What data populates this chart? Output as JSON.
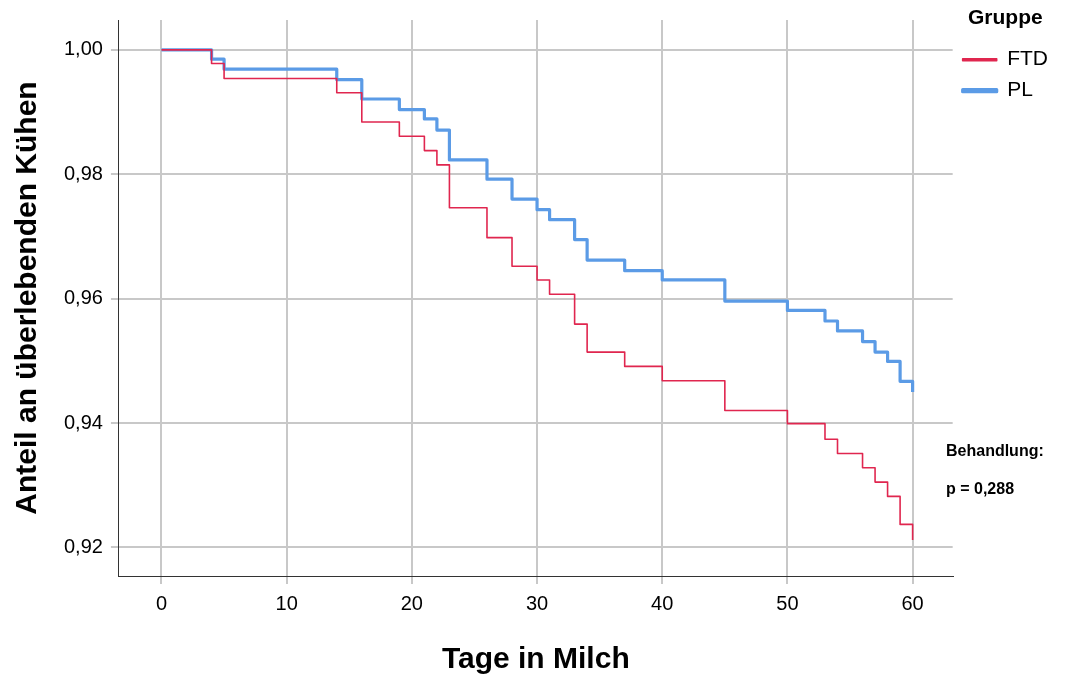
{
  "chart_data": {
    "type": "step",
    "xlabel": "Tage in Milch",
    "ylabel": "Anteil an überlebenden Kühen",
    "legend_title": "Gruppe",
    "legend": "top right",
    "xlim": [
      -3.4,
      63.2
    ],
    "xticks": [
      0,
      10,
      20,
      30,
      40,
      50,
      60
    ],
    "ylim": [
      0.9154,
      1.0048
    ],
    "yticks": [
      {
        "value": 0.92,
        "label": "0,92"
      },
      {
        "value": 0.94,
        "label": "0,94"
      },
      {
        "value": 0.96,
        "label": "0,96"
      },
      {
        "value": 0.98,
        "label": "0,98"
      },
      {
        "value": 1,
        "label": "1,00"
      }
    ],
    "grid": true,
    "marker": "none",
    "line_style": "solid",
    "annotations": [
      "Behandlung:",
      "p = 0,288"
    ],
    "series": [
      {
        "name": "PL",
        "color": "#5b9be6",
        "x": [
          0,
          4,
          5,
          14,
          16,
          19,
          21,
          22,
          23,
          26,
          28,
          30,
          31,
          33,
          34,
          37,
          40,
          45,
          50,
          53,
          54,
          56,
          57,
          58,
          59,
          60
        ],
        "values": [
          1,
          0.9985,
          0.9969,
          0.9952,
          0.9921,
          0.9904,
          0.9889,
          0.9871,
          0.9823,
          0.9792,
          0.976,
          0.9743,
          0.9727,
          0.9695,
          0.9662,
          0.9645,
          0.963,
          0.9596,
          0.9581,
          0.9564,
          0.9548,
          0.9531,
          0.9514,
          0.9499,
          0.9467,
          0.945
        ]
      },
      {
        "name": "FTD",
        "color": "#e0264f",
        "x": [
          0,
          4,
          5,
          14,
          16,
          19,
          21,
          22,
          23,
          26,
          28,
          30,
          31,
          33,
          34,
          37,
          40,
          45,
          50,
          53,
          54,
          56,
          57,
          58,
          59,
          60
        ],
        "values": [
          1,
          0.9978,
          0.9954,
          0.9931,
          0.9884,
          0.9861,
          0.9838,
          0.9815,
          0.9746,
          0.9698,
          0.9652,
          0.963,
          0.9607,
          0.9559,
          0.9514,
          0.9491,
          0.9468,
          0.942,
          0.9399,
          0.9374,
          0.9351,
          0.9328,
          0.9305,
          0.9282,
          0.9237,
          0.9212
        ]
      }
    ]
  }
}
